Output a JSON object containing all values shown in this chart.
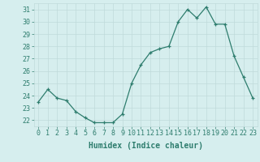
{
  "x": [
    0,
    1,
    2,
    3,
    4,
    5,
    6,
    7,
    8,
    9,
    10,
    11,
    12,
    13,
    14,
    15,
    16,
    17,
    18,
    19,
    20,
    21,
    22,
    23
  ],
  "y": [
    23.5,
    24.5,
    23.8,
    23.6,
    22.7,
    22.2,
    21.8,
    21.8,
    21.8,
    22.5,
    25.0,
    26.5,
    27.5,
    27.8,
    28.0,
    30.0,
    31.0,
    30.3,
    31.2,
    29.8,
    29.8,
    27.2,
    25.5,
    23.8
  ],
  "xlabel": "Humidex (Indice chaleur)",
  "ylim": [
    21.5,
    31.5
  ],
  "yticks": [
    22,
    23,
    24,
    25,
    26,
    27,
    28,
    29,
    30,
    31
  ],
  "xticks": [
    0,
    1,
    2,
    3,
    4,
    5,
    6,
    7,
    8,
    9,
    10,
    11,
    12,
    13,
    14,
    15,
    16,
    17,
    18,
    19,
    20,
    21,
    22,
    23
  ],
  "line_color": "#2e7d6e",
  "marker_color": "#2e7d6e",
  "bg_color": "#d6eeee",
  "grid_color": "#c0dada",
  "axis_color": "#2e7d6e",
  "tick_fontsize": 6,
  "xlabel_fontsize": 7
}
